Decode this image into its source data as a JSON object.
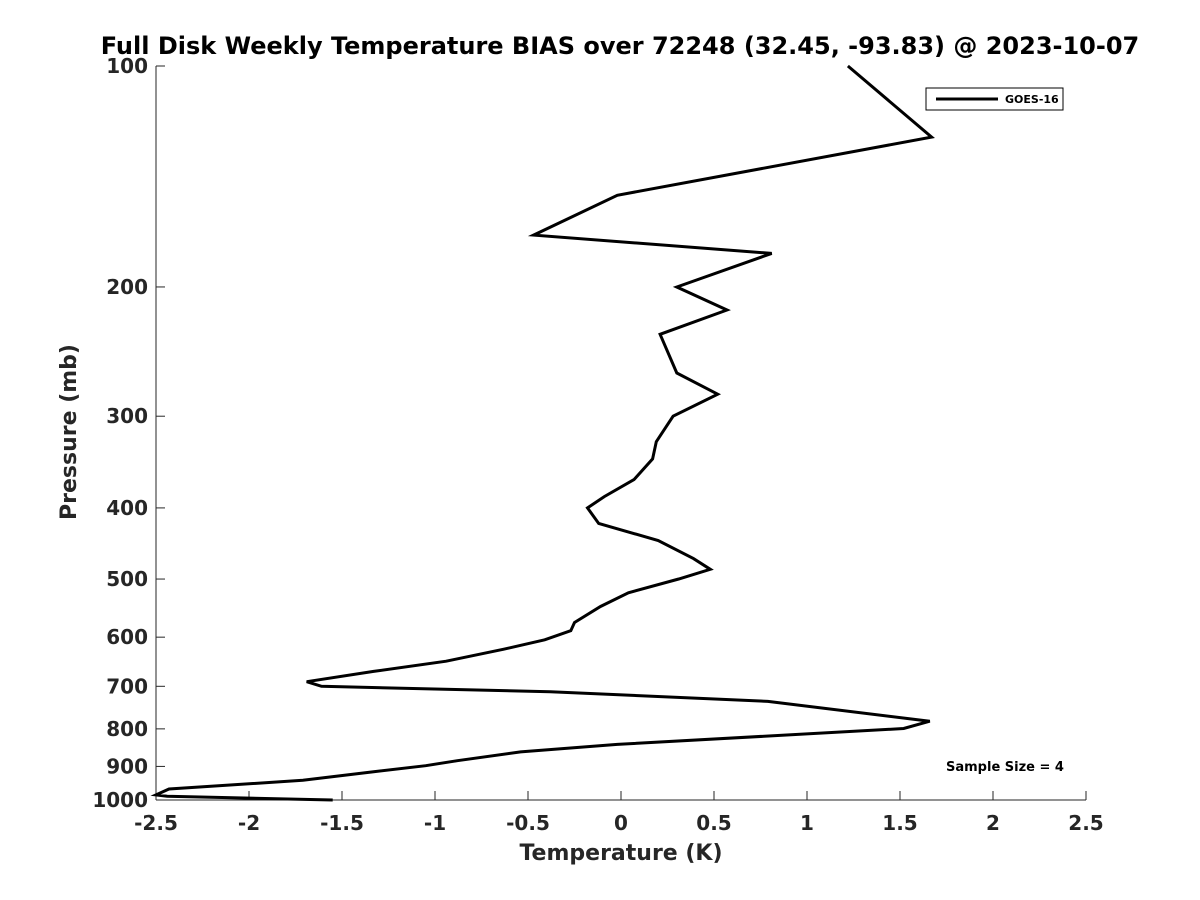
{
  "chart_data": {
    "type": "line",
    "title": "Full Disk Weekly Temperature BIAS over 72248 (32.45, -93.83) @ 2023-10-07",
    "xlabel": "Temperature (K)",
    "ylabel": "Pressure (mb)",
    "xlim": [
      -2.5,
      2.5
    ],
    "ylim": [
      100,
      1000
    ],
    "y_scale": "log",
    "y_reversed": true,
    "x_ticks": [
      "-2.5",
      "-2",
      "-1.5",
      "-1",
      "-0.5",
      "0",
      "0.5",
      "1",
      "1.5",
      "2",
      "2.5"
    ],
    "x_tick_values": [
      -2.5,
      -2,
      -1.5,
      -1,
      -0.5,
      0,
      0.5,
      1,
      1.5,
      2,
      2.5
    ],
    "y_ticks": [
      "100",
      "200",
      "300",
      "400",
      "500",
      "600",
      "700",
      "800",
      "900",
      "1000"
    ],
    "y_tick_values": [
      100,
      200,
      300,
      400,
      500,
      600,
      700,
      800,
      900,
      1000
    ],
    "grid": false,
    "legend_position": "top-right",
    "annotation": "Sample Size = 4",
    "series": [
      {
        "name": "GOES-16",
        "color": "#000000",
        "points": [
          [
            1.22,
            100
          ],
          [
            1.67,
            125
          ],
          [
            -0.02,
            150
          ],
          [
            -0.47,
            170
          ],
          [
            0.81,
            180
          ],
          [
            0.3,
            200
          ],
          [
            0.57,
            215
          ],
          [
            0.21,
            232
          ],
          [
            0.3,
            262
          ],
          [
            0.52,
            280
          ],
          [
            0.28,
            300
          ],
          [
            0.19,
            325
          ],
          [
            0.17,
            343
          ],
          [
            0.07,
            366
          ],
          [
            -0.09,
            386
          ],
          [
            -0.18,
            400
          ],
          [
            -0.12,
            420
          ],
          [
            0.2,
            443
          ],
          [
            0.39,
            469
          ],
          [
            0.48,
            485
          ],
          [
            0.31,
            500
          ],
          [
            0.04,
            522
          ],
          [
            -0.11,
            545
          ],
          [
            -0.25,
            573
          ],
          [
            -0.27,
            588
          ],
          [
            -0.41,
            605
          ],
          [
            -0.63,
            623
          ],
          [
            -0.94,
            647
          ],
          [
            -1.33,
            668
          ],
          [
            -1.69,
            690
          ],
          [
            -1.61,
            700
          ],
          [
            -0.38,
            712
          ],
          [
            0.79,
            734
          ],
          [
            1.66,
            781
          ],
          [
            1.52,
            799
          ],
          [
            -0.02,
            840
          ],
          [
            -0.54,
            860
          ],
          [
            -0.88,
            884
          ],
          [
            -1.05,
            898
          ],
          [
            -1.33,
            915
          ],
          [
            -1.71,
            940
          ],
          [
            -2.43,
            966
          ],
          [
            -2.5,
            984
          ],
          [
            -2.44,
            988
          ],
          [
            -1.55,
            1000
          ]
        ]
      }
    ]
  }
}
